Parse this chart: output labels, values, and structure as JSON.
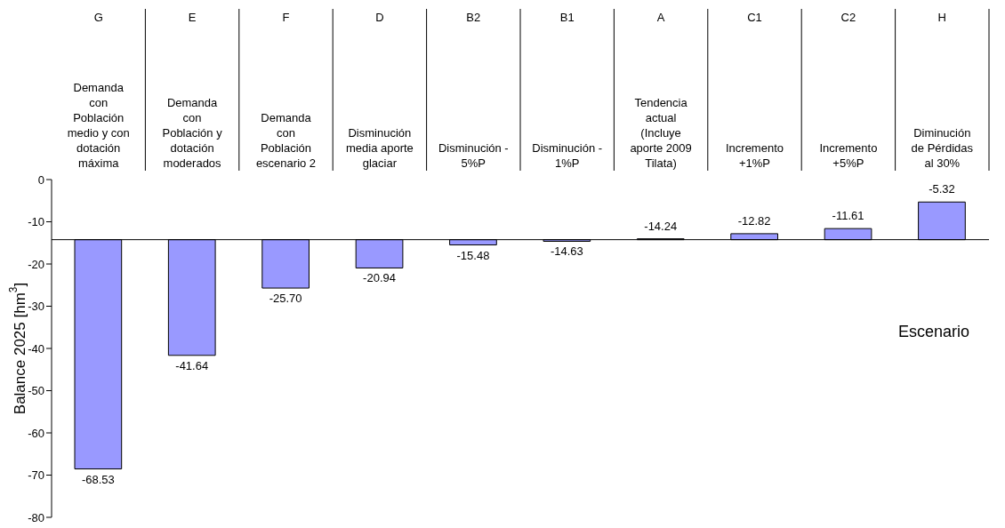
{
  "chart_data": {
    "type": "bar",
    "xlabel": "Escenario",
    "ylabel": "Balance 2025 [hm$^{3}$]",
    "categories": [
      "G\nDemanda\ncon\nPoblación\nmedio y con\ndotación\nmáxima",
      "E\nDemanda\ncon\nPoblación y\ndotación\nmoderados",
      "F\nDemanda\ncon\nPoblación\nescenario 2",
      "D\nDisminución\nmedia aporte\nglaciar",
      "B2\nDisminución -\n5%P",
      "B1\nDisminución -\n1%P",
      "A\nTendencia\nactual\n(Incluye\naporte 2009\nTilata)",
      "C1\nIncremento\n+1%P",
      "C2\nIncremento\n+5%P",
      "H\nDiminución\nde Pérdidas\nal 30%"
    ],
    "base": [
      -14.24,
      -14.24,
      -14.24,
      -14.24,
      -14.24,
      -14.24,
      -14.24,
      -14.24,
      -14.24,
      -14.24
    ],
    "values": [
      -54.29,
      -27.4,
      -11.46,
      -6.7,
      -1.24,
      -0.39,
      0,
      1.42,
      2.63,
      8.92
    ],
    "value_labels": [
      "-68.53",
      "-41.64",
      "-25.70",
      "-20.94",
      "-15.48",
      "-14.63",
      "-14.24",
      "-12.82",
      "-11.61",
      "-5.32"
    ],
    "color": "#9999ff",
    "ylim": [
      -80,
      0
    ],
    "yticks": [
      -80,
      -70,
      -60,
      -50,
      -40,
      -30,
      -20,
      -10,
      0
    ],
    "ref_lines": [
      {
        "axis": "y",
        "value": -14.24,
        "color": "#000000"
      }
    ],
    "grid": false,
    "legend": false
  }
}
